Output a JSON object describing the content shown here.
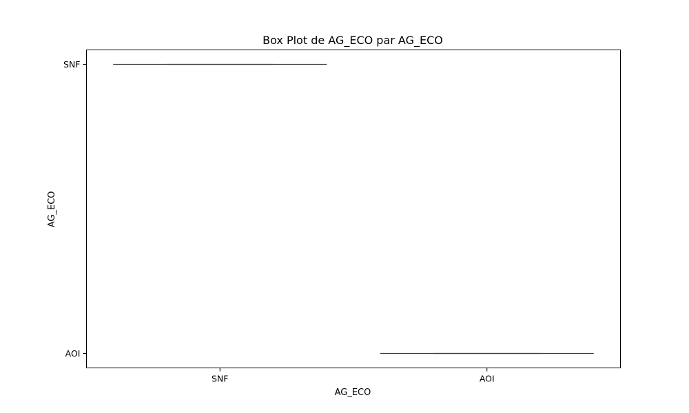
{
  "chart_data": {
    "type": "box",
    "title": "Box Plot de AG_ECO par AG_ECO",
    "xlabel": "AG_ECO",
    "ylabel": "AG_ECO",
    "categories": [
      "SNF",
      "AOI"
    ],
    "y_categories": [
      "SNF",
      "AOI"
    ],
    "grid": false,
    "legend": "none",
    "series": [
      {
        "category": "SNF",
        "value": "SNF"
      },
      {
        "category": "AOI",
        "value": "AOI"
      }
    ],
    "colors": {
      "box_line": "#3f3f3f",
      "axes": "#000000",
      "background": "#ffffff"
    }
  }
}
